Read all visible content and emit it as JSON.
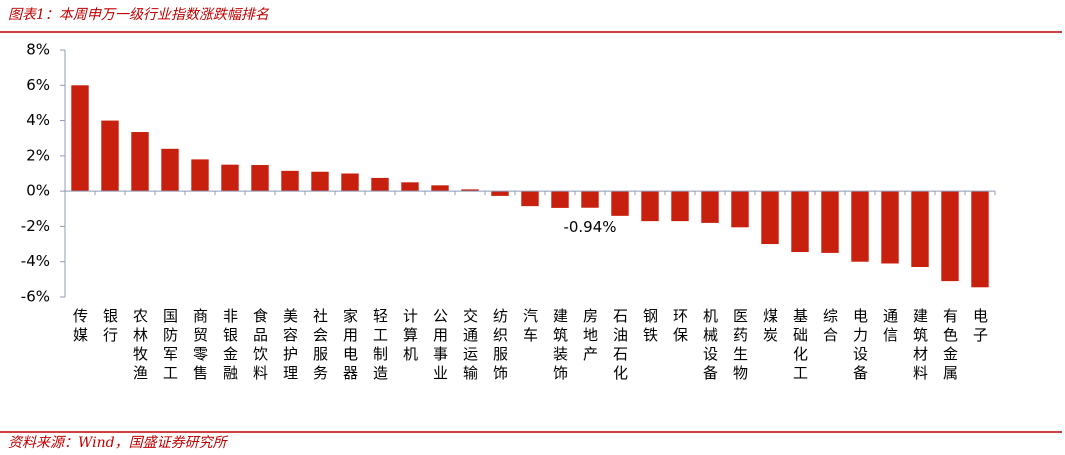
{
  "chart_data": {
    "type": "bar",
    "title": "图表1：本周申万一级行业指数涨跌幅排名",
    "source": "资料来源：Wind，国盛证券研究所",
    "categories": [
      "传媒",
      "银行",
      "农林牧渔",
      "国防军工",
      "商贸零售",
      "非银金融",
      "食品饮料",
      "美容护理",
      "社会服务",
      "家用电器",
      "轻工制造",
      "计算机",
      "公用事业",
      "交通运输",
      "纺织服饰",
      "汽车",
      "建筑装饰",
      "房地产",
      "石油石化",
      "钢铁",
      "环保",
      "机械设备",
      "医药生物",
      "煤炭",
      "基础化工",
      "综合",
      "电力设备",
      "通信",
      "建筑材料",
      "有色金属",
      "电子"
    ],
    "values": [
      6.0,
      4.0,
      3.35,
      2.4,
      1.8,
      1.5,
      1.48,
      1.15,
      1.1,
      1.0,
      0.75,
      0.5,
      0.33,
      0.1,
      -0.27,
      -0.85,
      -0.95,
      -0.94,
      -1.4,
      -1.7,
      -1.7,
      -1.8,
      -2.05,
      -3.0,
      -3.45,
      -3.5,
      -4.0,
      -4.1,
      -4.3,
      -5.1,
      -5.45
    ],
    "value_labels": [
      null,
      null,
      null,
      null,
      null,
      null,
      null,
      null,
      null,
      null,
      null,
      null,
      null,
      null,
      null,
      null,
      null,
      "-0.94%",
      null,
      null,
      null,
      null,
      null,
      null,
      null,
      null,
      null,
      null,
      null,
      null,
      null
    ],
    "color": "#c8200e",
    "ylim": [
      -6,
      8
    ],
    "yticks": [
      {
        "value": -6,
        "label": "-6%"
      },
      {
        "value": -4,
        "label": "-4%"
      },
      {
        "value": -2,
        "label": "-2%"
      },
      {
        "value": 0,
        "label": "0%"
      },
      {
        "value": 2,
        "label": "2%"
      },
      {
        "value": 4,
        "label": "4%"
      },
      {
        "value": 6,
        "label": "6%"
      },
      {
        "value": 8,
        "label": "8%"
      }
    ],
    "grid": false
  }
}
